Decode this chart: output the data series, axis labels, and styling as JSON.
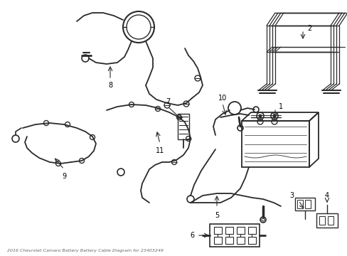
{
  "title": "2016 Chevrolet Camaro Battery Battery Cable Diagram for 23403249",
  "bg_color": "#ffffff",
  "line_color": "#2a2a2a",
  "label_color": "#000000",
  "fig_width": 4.89,
  "fig_height": 3.6,
  "dpi": 100
}
